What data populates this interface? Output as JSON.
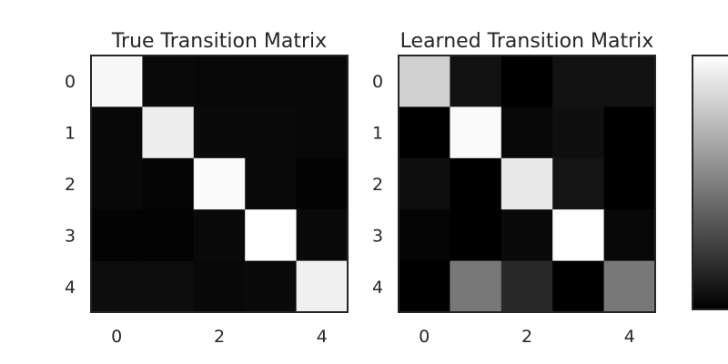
{
  "chart_data": [
    {
      "type": "heatmap",
      "title": "True Transition Matrix",
      "x_ticks": [
        "0",
        "2",
        "4"
      ],
      "y_ticks": [
        "0",
        "1",
        "2",
        "3",
        "4"
      ],
      "colormap": "gray",
      "values": [
        [
          0.97,
          0.04,
          0.03,
          0.03,
          0.03
        ],
        [
          0.03,
          0.93,
          0.04,
          0.04,
          0.03
        ],
        [
          0.03,
          0.02,
          0.98,
          0.04,
          0.01
        ],
        [
          0.01,
          0.01,
          0.04,
          1.0,
          0.04
        ],
        [
          0.05,
          0.05,
          0.03,
          0.04,
          0.94
        ]
      ]
    },
    {
      "type": "heatmap",
      "title": "Learned Transition Matrix",
      "x_ticks": [
        "0",
        "2",
        "4"
      ],
      "y_ticks": [
        "0",
        "1",
        "2",
        "3",
        "4"
      ],
      "colormap": "gray",
      "values": [
        [
          0.82,
          0.07,
          0.0,
          0.07,
          0.07
        ],
        [
          0.0,
          0.98,
          0.03,
          0.06,
          0.0
        ],
        [
          0.06,
          0.0,
          0.91,
          0.08,
          0.0
        ],
        [
          0.02,
          0.0,
          0.04,
          1.0,
          0.03
        ],
        [
          0.0,
          0.47,
          0.16,
          0.0,
          0.47
        ]
      ]
    }
  ],
  "colorbar": {
    "colormap": "gray",
    "range": [
      0,
      1
    ]
  }
}
